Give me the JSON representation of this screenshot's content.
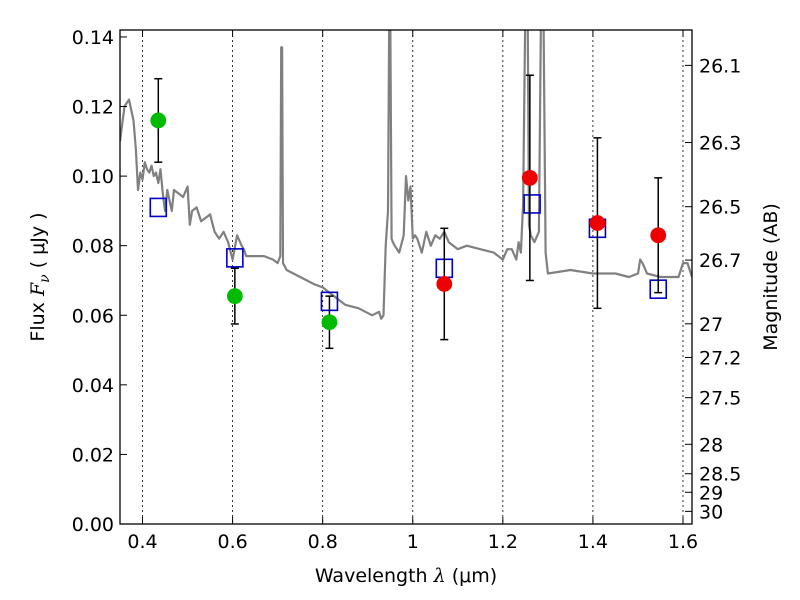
{
  "chart_data": {
    "type": "scatter",
    "title": "",
    "xlabel": "Wavelength  λ (μm)",
    "xlabel_parts": {
      "text": "Wavelength  ",
      "symbol": "λ",
      "unit": " (μm)"
    },
    "ylabel": "Flux  Fν  ( μJy )",
    "ylabel_parts": {
      "text": "Flux  ",
      "symbol": "F",
      "sub": "ν",
      "unit": "  ( μJy )"
    },
    "y2label": "Magnitude (AB)",
    "xlim": [
      0.35,
      1.62
    ],
    "ylim": [
      0.0,
      0.142
    ],
    "grid": true,
    "grid_axis": "x",
    "x_ticks": [
      {
        "value": 0.4,
        "label": "0.4"
      },
      {
        "value": 0.6,
        "label": "0.6"
      },
      {
        "value": 0.8,
        "label": "0.8"
      },
      {
        "value": 1.0,
        "label": "1"
      },
      {
        "value": 1.2,
        "label": "1.2"
      },
      {
        "value": 1.4,
        "label": "1.4"
      },
      {
        "value": 1.6,
        "label": "1.6"
      }
    ],
    "y_ticks": [
      {
        "value": 0.0,
        "label": "0.00"
      },
      {
        "value": 0.02,
        "label": "0.02"
      },
      {
        "value": 0.04,
        "label": "0.04"
      },
      {
        "value": 0.06,
        "label": "0.06"
      },
      {
        "value": 0.08,
        "label": "0.08"
      },
      {
        "value": 0.1,
        "label": "0.10"
      },
      {
        "value": 0.12,
        "label": "0.12"
      },
      {
        "value": 0.14,
        "label": "0.14"
      }
    ],
    "y2_ticks": [
      {
        "mag": 26.1,
        "label": "26.1"
      },
      {
        "mag": 26.3,
        "label": "26.3"
      },
      {
        "mag": 26.5,
        "label": "26.5"
      },
      {
        "mag": 26.7,
        "label": "26.7"
      },
      {
        "mag": 27.0,
        "label": "27"
      },
      {
        "mag": 27.2,
        "label": "27.2"
      },
      {
        "mag": 27.5,
        "label": "27.5"
      },
      {
        "mag": 28.0,
        "label": "28"
      },
      {
        "mag": 28.5,
        "label": "28.5"
      },
      {
        "mag": 29.0,
        "label": "29"
      },
      {
        "mag": 30.0,
        "label": "30"
      }
    ],
    "colors": {
      "spectrum": "#808080",
      "model": "#0000cc",
      "optical": "#00bb00",
      "nir": "#ee0000",
      "errorbar": "#000000",
      "grid": "#000000"
    },
    "series": [
      {
        "key": "spectrum",
        "kind": "line",
        "x": [
          0.35,
          0.36,
          0.37,
          0.38,
          0.385,
          0.39,
          0.395,
          0.4,
          0.405,
          0.41,
          0.415,
          0.42,
          0.425,
          0.43,
          0.435,
          0.44,
          0.445,
          0.45,
          0.455,
          0.46,
          0.465,
          0.47,
          0.48,
          0.49,
          0.5,
          0.505,
          0.51,
          0.52,
          0.53,
          0.54,
          0.55,
          0.56,
          0.57,
          0.58,
          0.59,
          0.6,
          0.61,
          0.62,
          0.625,
          0.63,
          0.65,
          0.67,
          0.69,
          0.7,
          0.706,
          0.708,
          0.71,
          0.712,
          0.72,
          0.75,
          0.78,
          0.8,
          0.82,
          0.85,
          0.88,
          0.91,
          0.925,
          0.93,
          0.935,
          0.94,
          0.945,
          0.948,
          0.95,
          0.953,
          0.956,
          0.96,
          0.97,
          0.98,
          0.985,
          0.99,
          0.995,
          1.0,
          1.005,
          1.01,
          1.02,
          1.03,
          1.04,
          1.05,
          1.06,
          1.07,
          1.08,
          1.1,
          1.12,
          1.15,
          1.18,
          1.2,
          1.21,
          1.22,
          1.23,
          1.235,
          1.24,
          1.245,
          1.25,
          1.255,
          1.258,
          1.262,
          1.27,
          1.28,
          1.285,
          1.29,
          1.295,
          1.3,
          1.35,
          1.4,
          1.45,
          1.48,
          1.5,
          1.505,
          1.51,
          1.52,
          1.55,
          1.58,
          1.59,
          1.6,
          1.61,
          1.62
        ],
        "y": [
          0.11,
          0.12,
          0.122,
          0.116,
          0.108,
          0.096,
          0.101,
          0.099,
          0.104,
          0.102,
          0.101,
          0.103,
          0.1,
          0.101,
          0.098,
          0.102,
          0.095,
          0.09,
          0.096,
          0.093,
          0.09,
          0.096,
          0.095,
          0.094,
          0.097,
          0.086,
          0.09,
          0.091,
          0.087,
          0.088,
          0.089,
          0.084,
          0.082,
          0.084,
          0.081,
          0.076,
          0.083,
          0.08,
          0.079,
          0.077,
          0.077,
          0.077,
          0.076,
          0.075,
          0.077,
          0.137,
          0.137,
          0.075,
          0.073,
          0.071,
          0.069,
          0.068,
          0.066,
          0.063,
          0.062,
          0.06,
          0.061,
          0.059,
          0.06,
          0.08,
          0.09,
          0.15,
          0.15,
          0.082,
          0.081,
          0.08,
          0.078,
          0.083,
          0.1,
          0.093,
          0.097,
          0.082,
          0.083,
          0.082,
          0.078,
          0.084,
          0.08,
          0.083,
          0.082,
          0.084,
          0.081,
          0.079,
          0.08,
          0.079,
          0.078,
          0.076,
          0.079,
          0.079,
          0.076,
          0.081,
          0.078,
          0.092,
          0.15,
          0.15,
          0.086,
          0.083,
          0.081,
          0.084,
          0.15,
          0.15,
          0.078,
          0.072,
          0.073,
          0.072,
          0.072,
          0.071,
          0.072,
          0.076,
          0.075,
          0.072,
          0.071,
          0.071,
          0.071,
          0.075,
          0.075,
          0.071
        ]
      },
      {
        "key": "model",
        "kind": "marker",
        "marker": "square",
        "x": [
          0.435,
          0.605,
          0.815,
          1.07,
          1.265,
          1.41,
          1.545
        ],
        "y": [
          0.091,
          0.0765,
          0.064,
          0.0735,
          0.092,
          0.085,
          0.0675
        ]
      },
      {
        "key": "optical",
        "kind": "marker",
        "marker": "circle",
        "x": [
          0.435,
          0.605,
          0.815
        ],
        "y": [
          0.116,
          0.0655,
          0.058
        ],
        "yerr": [
          0.012,
          0.008,
          0.0075
        ]
      },
      {
        "key": "nir",
        "kind": "marker",
        "marker": "circle",
        "x": [
          1.07,
          1.26,
          1.41,
          1.545
        ],
        "y": [
          0.069,
          0.0995,
          0.0865,
          0.083
        ],
        "yerr": [
          0.016,
          0.0295,
          0.0245,
          0.0165
        ]
      }
    ]
  }
}
